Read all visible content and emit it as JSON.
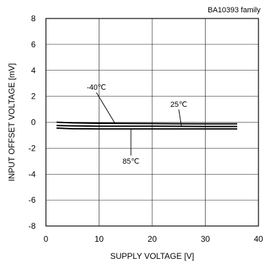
{
  "chart_data": {
    "type": "line",
    "note": "BA10393 family",
    "xlabel": "SUPPLY VOLTAGE [V]",
    "ylabel": "INPUT OFFSET VOLTAGE [mV]",
    "xlim": [
      0,
      40
    ],
    "ylim": [
      -8,
      8
    ],
    "xticks": [
      0,
      10,
      20,
      30,
      40
    ],
    "yticks": [
      -8,
      -6,
      -4,
      -2,
      0,
      2,
      4,
      6,
      8
    ],
    "grid": true,
    "series": [
      {
        "name": "-40℃",
        "x": [
          2,
          5,
          10,
          20,
          30,
          36
        ],
        "y": [
          0.0,
          -0.05,
          -0.08,
          -0.1,
          -0.12,
          -0.12
        ]
      },
      {
        "name": "25℃",
        "x": [
          2,
          5,
          10,
          20,
          30,
          36
        ],
        "y": [
          -0.25,
          -0.28,
          -0.3,
          -0.3,
          -0.32,
          -0.32
        ]
      },
      {
        "name": "85℃",
        "x": [
          2,
          5,
          10,
          20,
          30,
          36
        ],
        "y": [
          -0.45,
          -0.5,
          -0.52,
          -0.52,
          -0.52,
          -0.52
        ]
      }
    ],
    "annotations": [
      {
        "series": 0,
        "text": "-40℃",
        "at_x": 13,
        "text_x": 9.5,
        "text_y": 2.5
      },
      {
        "series": 1,
        "text": "25℃",
        "at_x": 25.5,
        "text_x": 25,
        "text_y": 1.2
      },
      {
        "series": 2,
        "text": "85℃",
        "at_x": 16,
        "text_x": 16,
        "text_y": -3.2
      }
    ]
  }
}
